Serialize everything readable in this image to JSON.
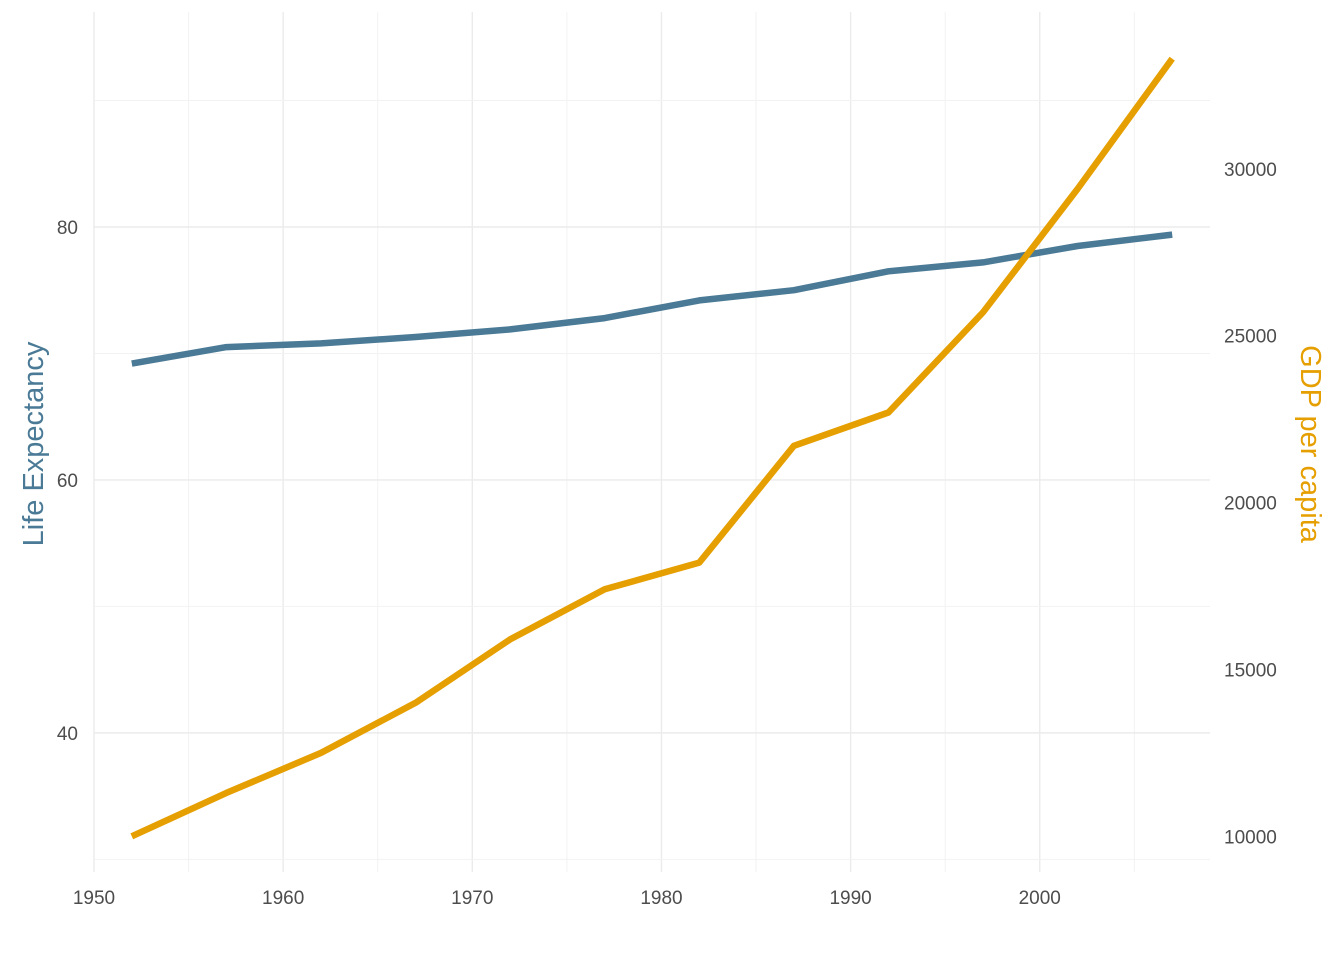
{
  "chart_data": {
    "type": "line",
    "title": "",
    "xlabel": "",
    "ylabel_left": "Life Expectancy",
    "ylabel_right": "GDP per capita",
    "x": [
      1952,
      1957,
      1962,
      1967,
      1972,
      1977,
      1982,
      1987,
      1992,
      1997,
      2002,
      2007
    ],
    "xlim": [
      1950,
      2009
    ],
    "x_ticks": [
      1950,
      1960,
      1970,
      1980,
      1990,
      2000
    ],
    "y_left_lim": [
      29,
      97
    ],
    "y_left_ticks": [
      40,
      60,
      80
    ],
    "y_right_lim": [
      8930,
      34700
    ],
    "y_right_ticks": [
      10000,
      15000,
      20000,
      25000,
      30000
    ],
    "grid": true,
    "legend": "none",
    "series": [
      {
        "name": "Life Expectancy",
        "axis": "left",
        "color": "#4a7a96",
        "values": [
          69.2,
          70.5,
          70.8,
          71.3,
          71.9,
          72.8,
          74.2,
          75.0,
          76.5,
          77.2,
          78.5,
          79.4
        ]
      },
      {
        "name": "GDP per capita",
        "axis": "right",
        "color": "#e69f00",
        "values": [
          10000,
          11300,
          12500,
          14000,
          15900,
          17400,
          18200,
          21700,
          22700,
          25700,
          29400,
          33300
        ]
      }
    ]
  }
}
